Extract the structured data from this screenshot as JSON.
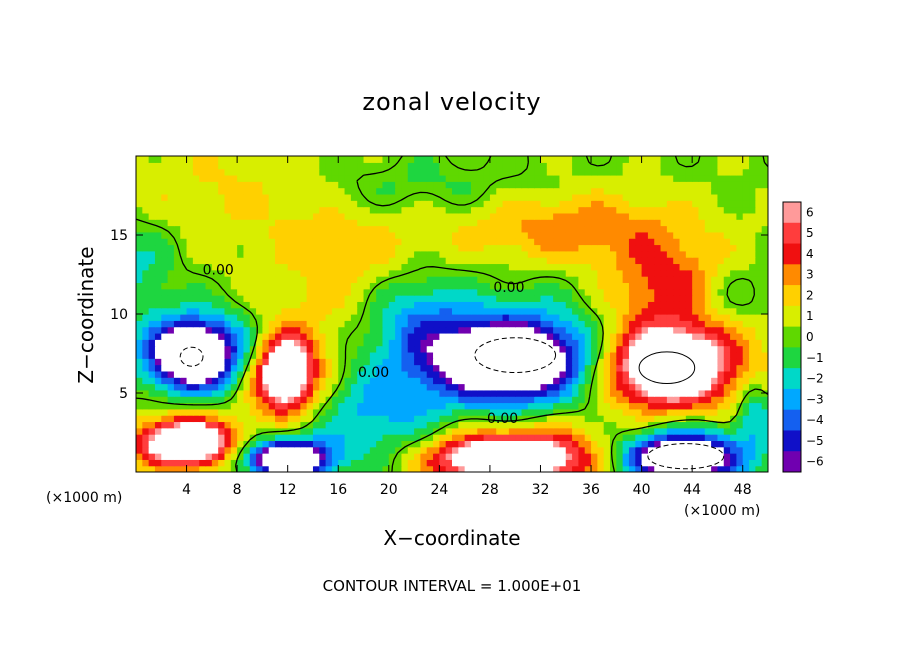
{
  "chart_data": {
    "type": "heatmap",
    "title": "zonal velocity",
    "xlabel": "X−coordinate",
    "ylabel": "Z−coordinate",
    "x_unit": "(×1000 m)",
    "x_ticks": [
      4,
      8,
      12,
      16,
      20,
      24,
      28,
      32,
      36,
      40,
      44,
      48
    ],
    "y_ticks": [
      5,
      10,
      15
    ],
    "xlim": [
      0,
      50
    ],
    "ylim": [
      0,
      20
    ],
    "colorbar": {
      "ticks": [
        "6",
        "5",
        "4",
        "3",
        "2",
        "1",
        "0",
        "−1",
        "−2",
        "−3",
        "−4",
        "−5",
        "−6"
      ],
      "colors": [
        "#ff9a9a",
        "#ff3d3d",
        "#f01010",
        "#ff8a00",
        "#ffd000",
        "#d8ee00",
        "#5fd800",
        "#1ed640",
        "#00d8c8",
        "#00a8ff",
        "#1460f0",
        "#1010c8",
        "#7000b0"
      ]
    },
    "contour_labels": [
      {
        "text": "0.00",
        "x": 6.5,
        "z": 12.5
      },
      {
        "text": "0.00",
        "x": 29.5,
        "z": 11.4
      },
      {
        "text": "0.00",
        "x": 29.0,
        "z": 3.1
      },
      {
        "text": "0.00",
        "x": 18.8,
        "z": 6.0
      }
    ],
    "contour_note": "CONTOUR INTERVAL = 1.000E+01",
    "features": [
      {
        "x": 6,
        "z": 7.5,
        "rx": 5,
        "rz": 2.6,
        "v": -5.5
      },
      {
        "x": 4,
        "z": 7.5,
        "rx": 3,
        "rz": 2,
        "v": -6.6
      },
      {
        "x": 11.5,
        "z": 6.5,
        "rx": 3.5,
        "rz": 3,
        "v": 5
      },
      {
        "x": 11.8,
        "z": 6.3,
        "rx": 2,
        "rz": 2,
        "v": 6.8
      },
      {
        "x": 30,
        "z": 7.2,
        "rx": 9,
        "rz": 3.5,
        "v": -5
      },
      {
        "x": 29.5,
        "z": 7.2,
        "rx": 5.5,
        "rz": 2.3,
        "v": -6.8
      },
      {
        "x": 42,
        "z": 6.8,
        "rx": 7,
        "rz": 3.5,
        "v": 5
      },
      {
        "x": 42,
        "z": 6.8,
        "rx": 4.2,
        "rz": 2.3,
        "v": 6.8
      },
      {
        "x": 35,
        "z": 15.5,
        "rx": 9,
        "rz": 2.2,
        "v": 3
      },
      {
        "x": 42,
        "z": 12.2,
        "rx": 4.5,
        "rz": 2.5,
        "v": 3.4
      },
      {
        "x": 4,
        "z": 2,
        "rx": 4.5,
        "rz": 1.8,
        "v": 5
      },
      {
        "x": 4,
        "z": 1.8,
        "rx": 3,
        "rz": 1.2,
        "v": 6.8
      },
      {
        "x": 12,
        "z": 1,
        "rx": 4,
        "rz": 1.4,
        "v": -5.5
      },
      {
        "x": 12,
        "z": 0.8,
        "rx": 2.6,
        "rz": 0.9,
        "v": -6.8
      },
      {
        "x": 31,
        "z": 1.2,
        "rx": 8,
        "rz": 2,
        "v": 5
      },
      {
        "x": 29,
        "z": 0.8,
        "rx": 5,
        "rz": 1.2,
        "v": 6.8
      },
      {
        "x": 43,
        "z": 1.2,
        "rx": 6,
        "rz": 2.2,
        "v": -5
      },
      {
        "x": 43,
        "z": 1,
        "rx": 4,
        "rz": 1.2,
        "v": -6.8
      },
      {
        "x": 19,
        "z": 3.5,
        "rx": 5,
        "rz": 3,
        "v": -3
      },
      {
        "x": 22,
        "z": 10,
        "rx": 4,
        "rz": 3,
        "v": -3
      },
      {
        "x": 17,
        "z": 13,
        "rx": 7,
        "rz": 5,
        "v": 1.8
      },
      {
        "x": 20,
        "z": 18,
        "rx": 10,
        "rz": 2,
        "v": -1.5
      },
      {
        "x": 0,
        "z": 13,
        "rx": 3,
        "rz": 3,
        "v": -2
      },
      {
        "x": 49,
        "z": 4,
        "rx": 1.5,
        "rz": 2,
        "v": -3
      },
      {
        "x": 47,
        "z": 11,
        "rx": 3,
        "rz": 2,
        "v": -1.5
      },
      {
        "x": 8,
        "z": 18,
        "rx": 9,
        "rz": 3,
        "v": 1.5
      }
    ]
  }
}
